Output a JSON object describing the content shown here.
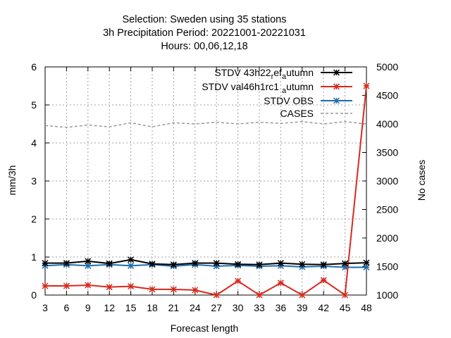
{
  "chart_data": {
    "type": "line",
    "title_lines": [
      "Selection: Sweden using    35 stations",
      "3h Precipitation   Period: 20221001-20221031",
      "Hours:  00,06,12,18"
    ],
    "xlabel": "Forecast length",
    "ylabel": "mm/3h",
    "y2label": "No cases",
    "x": [
      3,
      6,
      9,
      12,
      15,
      18,
      21,
      24,
      27,
      30,
      33,
      36,
      39,
      42,
      45,
      48
    ],
    "xlim": [
      3,
      48
    ],
    "ylim": [
      0,
      6
    ],
    "y2lim": [
      1000,
      5000
    ],
    "x_ticks": [
      "3",
      "6",
      "9",
      "12",
      "15",
      "18",
      "21",
      "24",
      "27",
      "30",
      "33",
      "36",
      "39",
      "42",
      "45",
      "48"
    ],
    "y_ticks": [
      "0",
      "1",
      "2",
      "3",
      "4",
      "5",
      "6"
    ],
    "y2_ticks": [
      "1000",
      "1500",
      "2000",
      "2500",
      "3000",
      "3500",
      "4000",
      "4500",
      "5000"
    ],
    "grid": true,
    "legend_position": "top-right",
    "series": [
      {
        "name": "STDV 43h22_ref_autumn",
        "legend_main": "STDV 43h22",
        "legend_parts": [
          "STDV 43h22",
          "r",
          "ef",
          "a",
          "utumn"
        ],
        "color": "#000000",
        "marker": "star",
        "axis": "y",
        "values": [
          0.84,
          0.84,
          0.89,
          0.83,
          0.93,
          0.82,
          0.8,
          0.84,
          0.84,
          0.81,
          0.8,
          0.84,
          0.81,
          0.8,
          0.83,
          0.85
        ]
      },
      {
        "name": "STDV val46h1rc1_autumn",
        "legend_parts": [
          "STDV val46h1rc1",
          "a",
          "utumn"
        ],
        "color": "#d62a1e",
        "marker": "star",
        "axis": "y",
        "values": [
          0.24,
          0.24,
          0.26,
          0.21,
          0.23,
          0.15,
          0.15,
          0.13,
          0.0,
          0.37,
          0.0,
          0.32,
          0.0,
          0.39,
          0.0,
          5.5
        ]
      },
      {
        "name": "STDV OBS",
        "legend_parts": [
          "STDV OBS"
        ],
        "color": "#1f6fb0",
        "marker": "star",
        "axis": "y",
        "values": [
          0.77,
          0.8,
          0.77,
          0.8,
          0.77,
          0.8,
          0.76,
          0.8,
          0.76,
          0.78,
          0.76,
          0.77,
          0.74,
          0.76,
          0.73,
          0.73
        ]
      },
      {
        "name": "CASES",
        "legend_parts": [
          "CASES"
        ],
        "color": "#999999",
        "marker": "none",
        "dashed": true,
        "axis": "y2",
        "values": [
          3970,
          3940,
          3980,
          3950,
          4020,
          3950,
          4020,
          4000,
          4030,
          4000,
          4030,
          4010,
          4040,
          4000,
          4040,
          4000
        ]
      }
    ]
  }
}
